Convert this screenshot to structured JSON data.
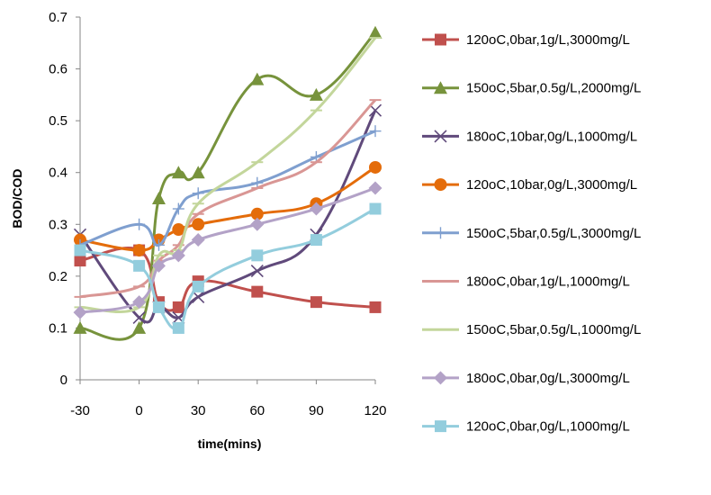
{
  "chart_data": {
    "type": "line",
    "title": "",
    "xlabel": "time(mins)",
    "ylabel": "BOD/COD",
    "xlim": [
      -30,
      120
    ],
    "ylim": [
      0,
      0.7
    ],
    "x_ticks": [
      -30,
      0,
      30,
      60,
      90,
      120
    ],
    "y_ticks": [
      0,
      0.1,
      0.2,
      0.3,
      0.4,
      0.5,
      0.6,
      0.7
    ],
    "x_tick_labels": [
      "-30",
      "0",
      "30",
      "60",
      "90",
      "120"
    ],
    "y_tick_labels": [
      "0",
      "0.1",
      "0.2",
      "0.3",
      "0.4",
      "0.5",
      "0.6",
      "0.7"
    ],
    "grid": false,
    "legend_position": "right",
    "series": [
      {
        "name": "120oC,0bar,1g/L,3000mg/L",
        "color": "#C0504D",
        "marker": "square",
        "x": [
          -30,
          0,
          10,
          20,
          30,
          60,
          90,
          120
        ],
        "y": [
          0.23,
          0.25,
          0.15,
          0.14,
          0.19,
          0.17,
          0.15,
          0.14
        ]
      },
      {
        "name": "150oC,5bar,0.5g/L,2000mg/L",
        "color": "#77933C",
        "marker": "triangle",
        "x": [
          -30,
          0,
          10,
          20,
          30,
          60,
          90,
          120
        ],
        "y": [
          0.1,
          0.1,
          0.35,
          0.4,
          0.4,
          0.58,
          0.55,
          0.67
        ]
      },
      {
        "name": "180oC,10bar,0g/L,1000mg/L",
        "color": "#604A7B",
        "marker": "x",
        "x": [
          -30,
          0,
          10,
          20,
          30,
          60,
          90,
          120
        ],
        "y": [
          0.28,
          0.12,
          0.14,
          0.12,
          0.16,
          0.21,
          0.28,
          0.52
        ]
      },
      {
        "name": "120oC,10bar,0g/L,3000mg/L",
        "color": "#E46C0A",
        "marker": "circle",
        "x": [
          -30,
          0,
          10,
          20,
          30,
          60,
          90,
          120
        ],
        "y": [
          0.27,
          0.25,
          0.27,
          0.29,
          0.3,
          0.32,
          0.34,
          0.41
        ]
      },
      {
        "name": "150oC,5bar,0.5g/L,3000mg/L",
        "color": "#7F9FCF",
        "marker": "plus",
        "x": [
          -30,
          0,
          10,
          20,
          30,
          60,
          90,
          120
        ],
        "y": [
          0.26,
          0.3,
          0.26,
          0.33,
          0.36,
          0.38,
          0.43,
          0.48
        ]
      },
      {
        "name": "180oC,0bar,1g/L,1000mg/L",
        "color": "#D99694",
        "marker": "dash",
        "x": [
          -30,
          0,
          10,
          20,
          30,
          60,
          90,
          120
        ],
        "y": [
          0.16,
          0.18,
          0.23,
          0.26,
          0.32,
          0.37,
          0.42,
          0.54
        ]
      },
      {
        "name": "150oC,5bar,0.5g/L,1000mg/L",
        "color": "#C3D69B",
        "marker": "dash",
        "x": [
          -30,
          0,
          10,
          20,
          30,
          60,
          90,
          120
        ],
        "y": [
          0.14,
          0.14,
          0.24,
          0.25,
          0.34,
          0.42,
          0.52,
          0.66
        ]
      },
      {
        "name": "180oC,0bar,0g/L,3000mg/L",
        "color": "#B3A2C7",
        "marker": "diamond",
        "x": [
          -30,
          0,
          10,
          20,
          30,
          60,
          90,
          120
        ],
        "y": [
          0.13,
          0.15,
          0.22,
          0.24,
          0.27,
          0.3,
          0.33,
          0.37
        ]
      },
      {
        "name": "120oC,0bar,0g/L,1000mg/L",
        "color": "#93CDDD",
        "marker": "square",
        "x": [
          -30,
          0,
          10,
          20,
          30,
          60,
          90,
          120
        ],
        "y": [
          0.25,
          0.22,
          0.14,
          0.1,
          0.18,
          0.24,
          0.27,
          0.33
        ]
      }
    ]
  }
}
